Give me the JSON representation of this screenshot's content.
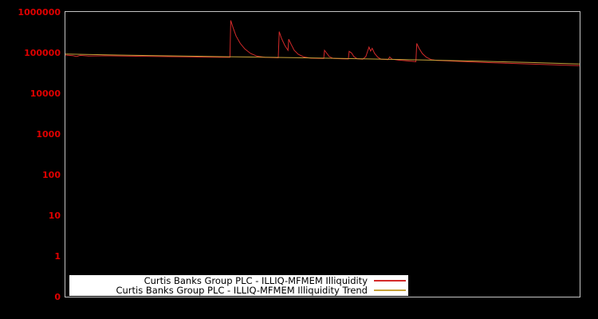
{
  "figure": {
    "background_color": "#000000",
    "plot_border_color": "#c4c4c4",
    "tick_label_color": "#e00000"
  },
  "legend": {
    "background_color": "#ffffff",
    "entries": [
      {
        "label": "Curtis Banks Group PLC - ILLIQ-MFMEM Illiquidity"
      },
      {
        "label": "Curtis Banks Group PLC - ILLIQ-MFMEM Illiquidity Trend"
      }
    ]
  },
  "chart_data": {
    "type": "line",
    "title": "",
    "xlabel": "",
    "ylabel": "",
    "y_scale": "log",
    "ylim": [
      0.1,
      1000000
    ],
    "grid": false,
    "legend_position": "bottom-left-inside",
    "x_axis_labels_visible": false,
    "x_unit": "fraction of x-axis width (no x tick labels shown)",
    "y_ticks": [
      {
        "label": "1000000",
        "value": 1000000
      },
      {
        "label": "100000",
        "value": 100000
      },
      {
        "label": "10000",
        "value": 10000
      },
      {
        "label": "1000",
        "value": 1000
      },
      {
        "label": "100",
        "value": 100
      },
      {
        "label": "10",
        "value": 10
      },
      {
        "label": "1",
        "value": 1
      },
      {
        "label": "0",
        "value": 0.1
      }
    ],
    "series": [
      {
        "name": "Curtis Banks Group PLC - ILLIQ-MFMEM Illiquidity",
        "color": "#d42a2a",
        "points": [
          [
            0.0,
            96000
          ],
          [
            0.014,
            93000
          ],
          [
            0.0216,
            88000
          ],
          [
            0.029,
            94000
          ],
          [
            0.045,
            91000
          ],
          [
            0.076,
            92000
          ],
          [
            0.122,
            90000
          ],
          [
            0.184,
            88000
          ],
          [
            0.246,
            86000
          ],
          [
            0.292,
            84500
          ],
          [
            0.32,
            84000
          ],
          [
            0.3215,
            680000
          ],
          [
            0.326,
            450000
          ],
          [
            0.332,
            280000
          ],
          [
            0.34,
            185000
          ],
          [
            0.349,
            135000
          ],
          [
            0.36,
            105000
          ],
          [
            0.3725,
            90000
          ],
          [
            0.388,
            84000
          ],
          [
            0.4065,
            82500
          ],
          [
            0.414,
            82000
          ],
          [
            0.4158,
            360000
          ],
          [
            0.42,
            250000
          ],
          [
            0.4266,
            165000
          ],
          [
            0.4328,
            125000
          ],
          [
            0.4343,
            235000
          ],
          [
            0.439,
            175000
          ],
          [
            0.445,
            125000
          ],
          [
            0.4529,
            100000
          ],
          [
            0.4637,
            86000
          ],
          [
            0.4776,
            80000
          ],
          [
            0.493,
            79000
          ],
          [
            0.5023,
            78500
          ],
          [
            0.5039,
            125000
          ],
          [
            0.5085,
            105000
          ],
          [
            0.513,
            88000
          ],
          [
            0.5209,
            79000
          ],
          [
            0.5394,
            77500
          ],
          [
            0.5502,
            77000
          ],
          [
            0.5518,
            118000
          ],
          [
            0.5564,
            108000
          ],
          [
            0.561,
            88000
          ],
          [
            0.5672,
            78000
          ],
          [
            0.578,
            76000
          ],
          [
            0.5842,
            88000
          ],
          [
            0.5873,
            115000
          ],
          [
            0.5904,
            150000
          ],
          [
            0.5935,
            120000
          ],
          [
            0.5966,
            140000
          ],
          [
            0.6012,
            105000
          ],
          [
            0.6074,
            85000
          ],
          [
            0.6136,
            76000
          ],
          [
            0.6275,
            74000
          ],
          [
            0.6306,
            86000
          ],
          [
            0.6352,
            76000
          ],
          [
            0.6476,
            72000
          ],
          [
            0.6708,
            68000
          ],
          [
            0.6816,
            66000
          ],
          [
            0.6832,
            185000
          ],
          [
            0.6878,
            140000
          ],
          [
            0.694,
            105000
          ],
          [
            0.7017,
            85000
          ],
          [
            0.711,
            74000
          ],
          [
            0.7218,
            70500
          ],
          [
            0.7404,
            69000
          ],
          [
            0.7867,
            65000
          ],
          [
            0.8331,
            62000
          ],
          [
            0.8795,
            59000
          ],
          [
            0.9258,
            56500
          ],
          [
            0.9722,
            54000
          ],
          [
            1.0,
            52500
          ]
        ]
      },
      {
        "name": "Curtis Banks Group PLC - ILLIQ-MFMEM Illiquidity Trend",
        "color": "#c7a23a",
        "points": [
          [
            0.0,
            101000
          ],
          [
            0.1,
            96000
          ],
          [
            0.2,
            91500
          ],
          [
            0.3,
            87500
          ],
          [
            0.4,
            84000
          ],
          [
            0.5,
            80500
          ],
          [
            0.6,
            76500
          ],
          [
            0.7,
            72500
          ],
          [
            0.8,
            68000
          ],
          [
            0.9,
            63000
          ],
          [
            1.0,
            58000
          ]
        ]
      }
    ]
  }
}
